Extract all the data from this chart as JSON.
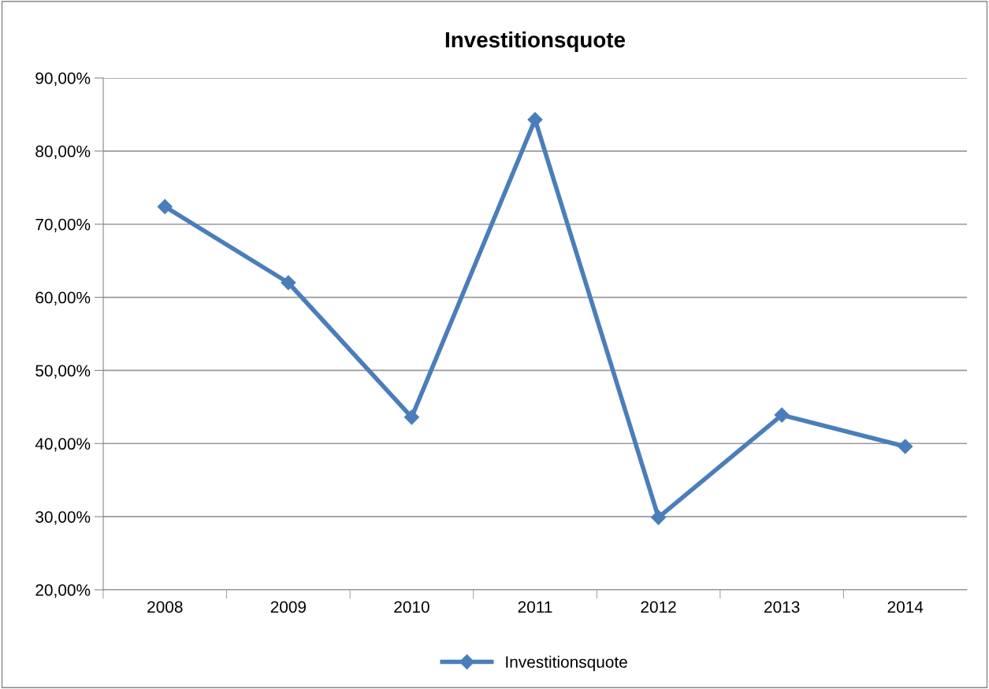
{
  "chart_data": {
    "type": "line",
    "title": "Investitionsquote",
    "categories": [
      "2008",
      "2009",
      "2010",
      "2011",
      "2012",
      "2013",
      "2014"
    ],
    "series": [
      {
        "name": "Investitionsquote",
        "color": "#4a7ebb",
        "values": [
          72.4,
          62.0,
          43.6,
          84.3,
          29.9,
          43.9,
          39.6
        ]
      }
    ],
    "ylim": [
      20,
      90
    ],
    "yticks": [
      {
        "value": 20,
        "label": "20,00%"
      },
      {
        "value": 30,
        "label": "30,00%"
      },
      {
        "value": 40,
        "label": "40,00%"
      },
      {
        "value": 50,
        "label": "50,00%"
      },
      {
        "value": 60,
        "label": "60,00%"
      },
      {
        "value": 70,
        "label": "70,00%"
      },
      {
        "value": 80,
        "label": "80,00%"
      },
      {
        "value": 90,
        "label": "90,00%"
      }
    ],
    "grid": "y",
    "legend": "bottom",
    "marker": "diamond",
    "line_style": "solid"
  }
}
